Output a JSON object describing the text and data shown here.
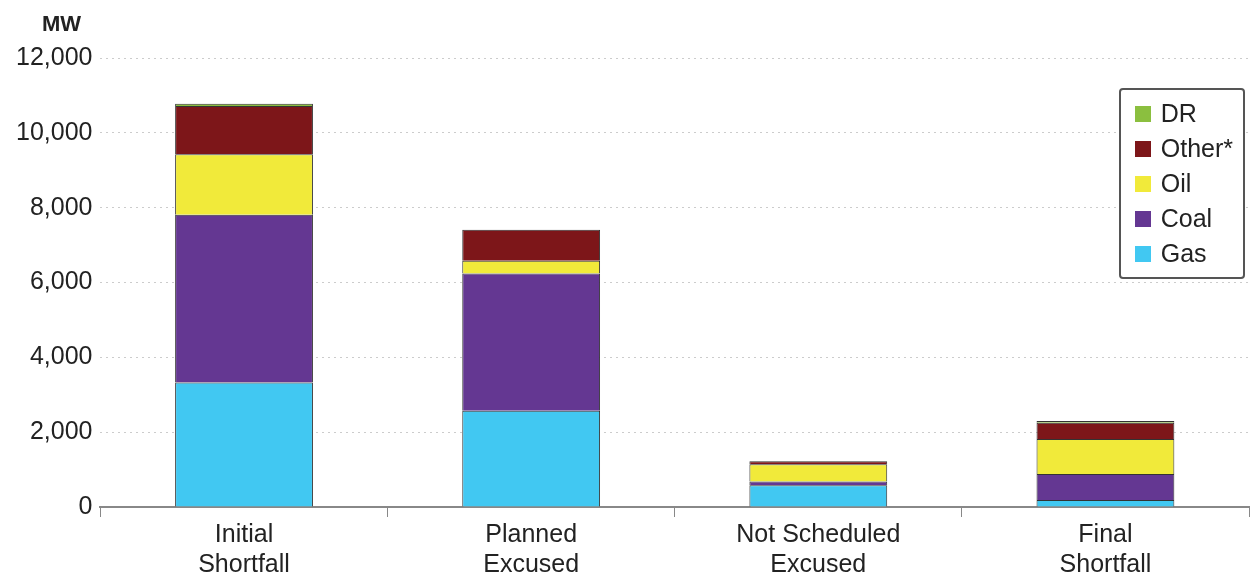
{
  "chart_data": {
    "type": "bar",
    "stacked": true,
    "ylabel": "MW",
    "categories": [
      "Initial\nShortfall",
      "Planned\nExcused",
      "Not Scheduled\nExcused",
      "Final\nShortfall"
    ],
    "series": [
      {
        "name": "Gas",
        "color": "#41c8f2",
        "values": [
          3330,
          2570,
          580,
          190
        ]
      },
      {
        "name": "Coal",
        "color": "#643792",
        "values": [
          4480,
          3670,
          100,
          690
        ]
      },
      {
        "name": "Oil",
        "color": "#f1ea3a",
        "values": [
          1620,
          340,
          460,
          940
        ]
      },
      {
        "name": "Other*",
        "color": "#7d1619",
        "values": [
          1290,
          830,
          80,
          430
        ]
      },
      {
        "name": "DR",
        "color": "#8bbf3f",
        "values": [
          60,
          0,
          0,
          50
        ]
      }
    ],
    "ylim": [
      0,
      12000
    ],
    "yticks": [
      0,
      {
        "value": 2000,
        "label": "2,000"
      },
      {
        "value": 4000,
        "label": "4,000"
      },
      {
        "value": 6000,
        "label": "6,000"
      },
      {
        "value": 8000,
        "label": "8,000"
      },
      {
        "value": 10000,
        "label": "10,000"
      },
      {
        "value": 12000,
        "label": "12,000"
      }
    ],
    "grid": "y",
    "legend": "top right"
  }
}
